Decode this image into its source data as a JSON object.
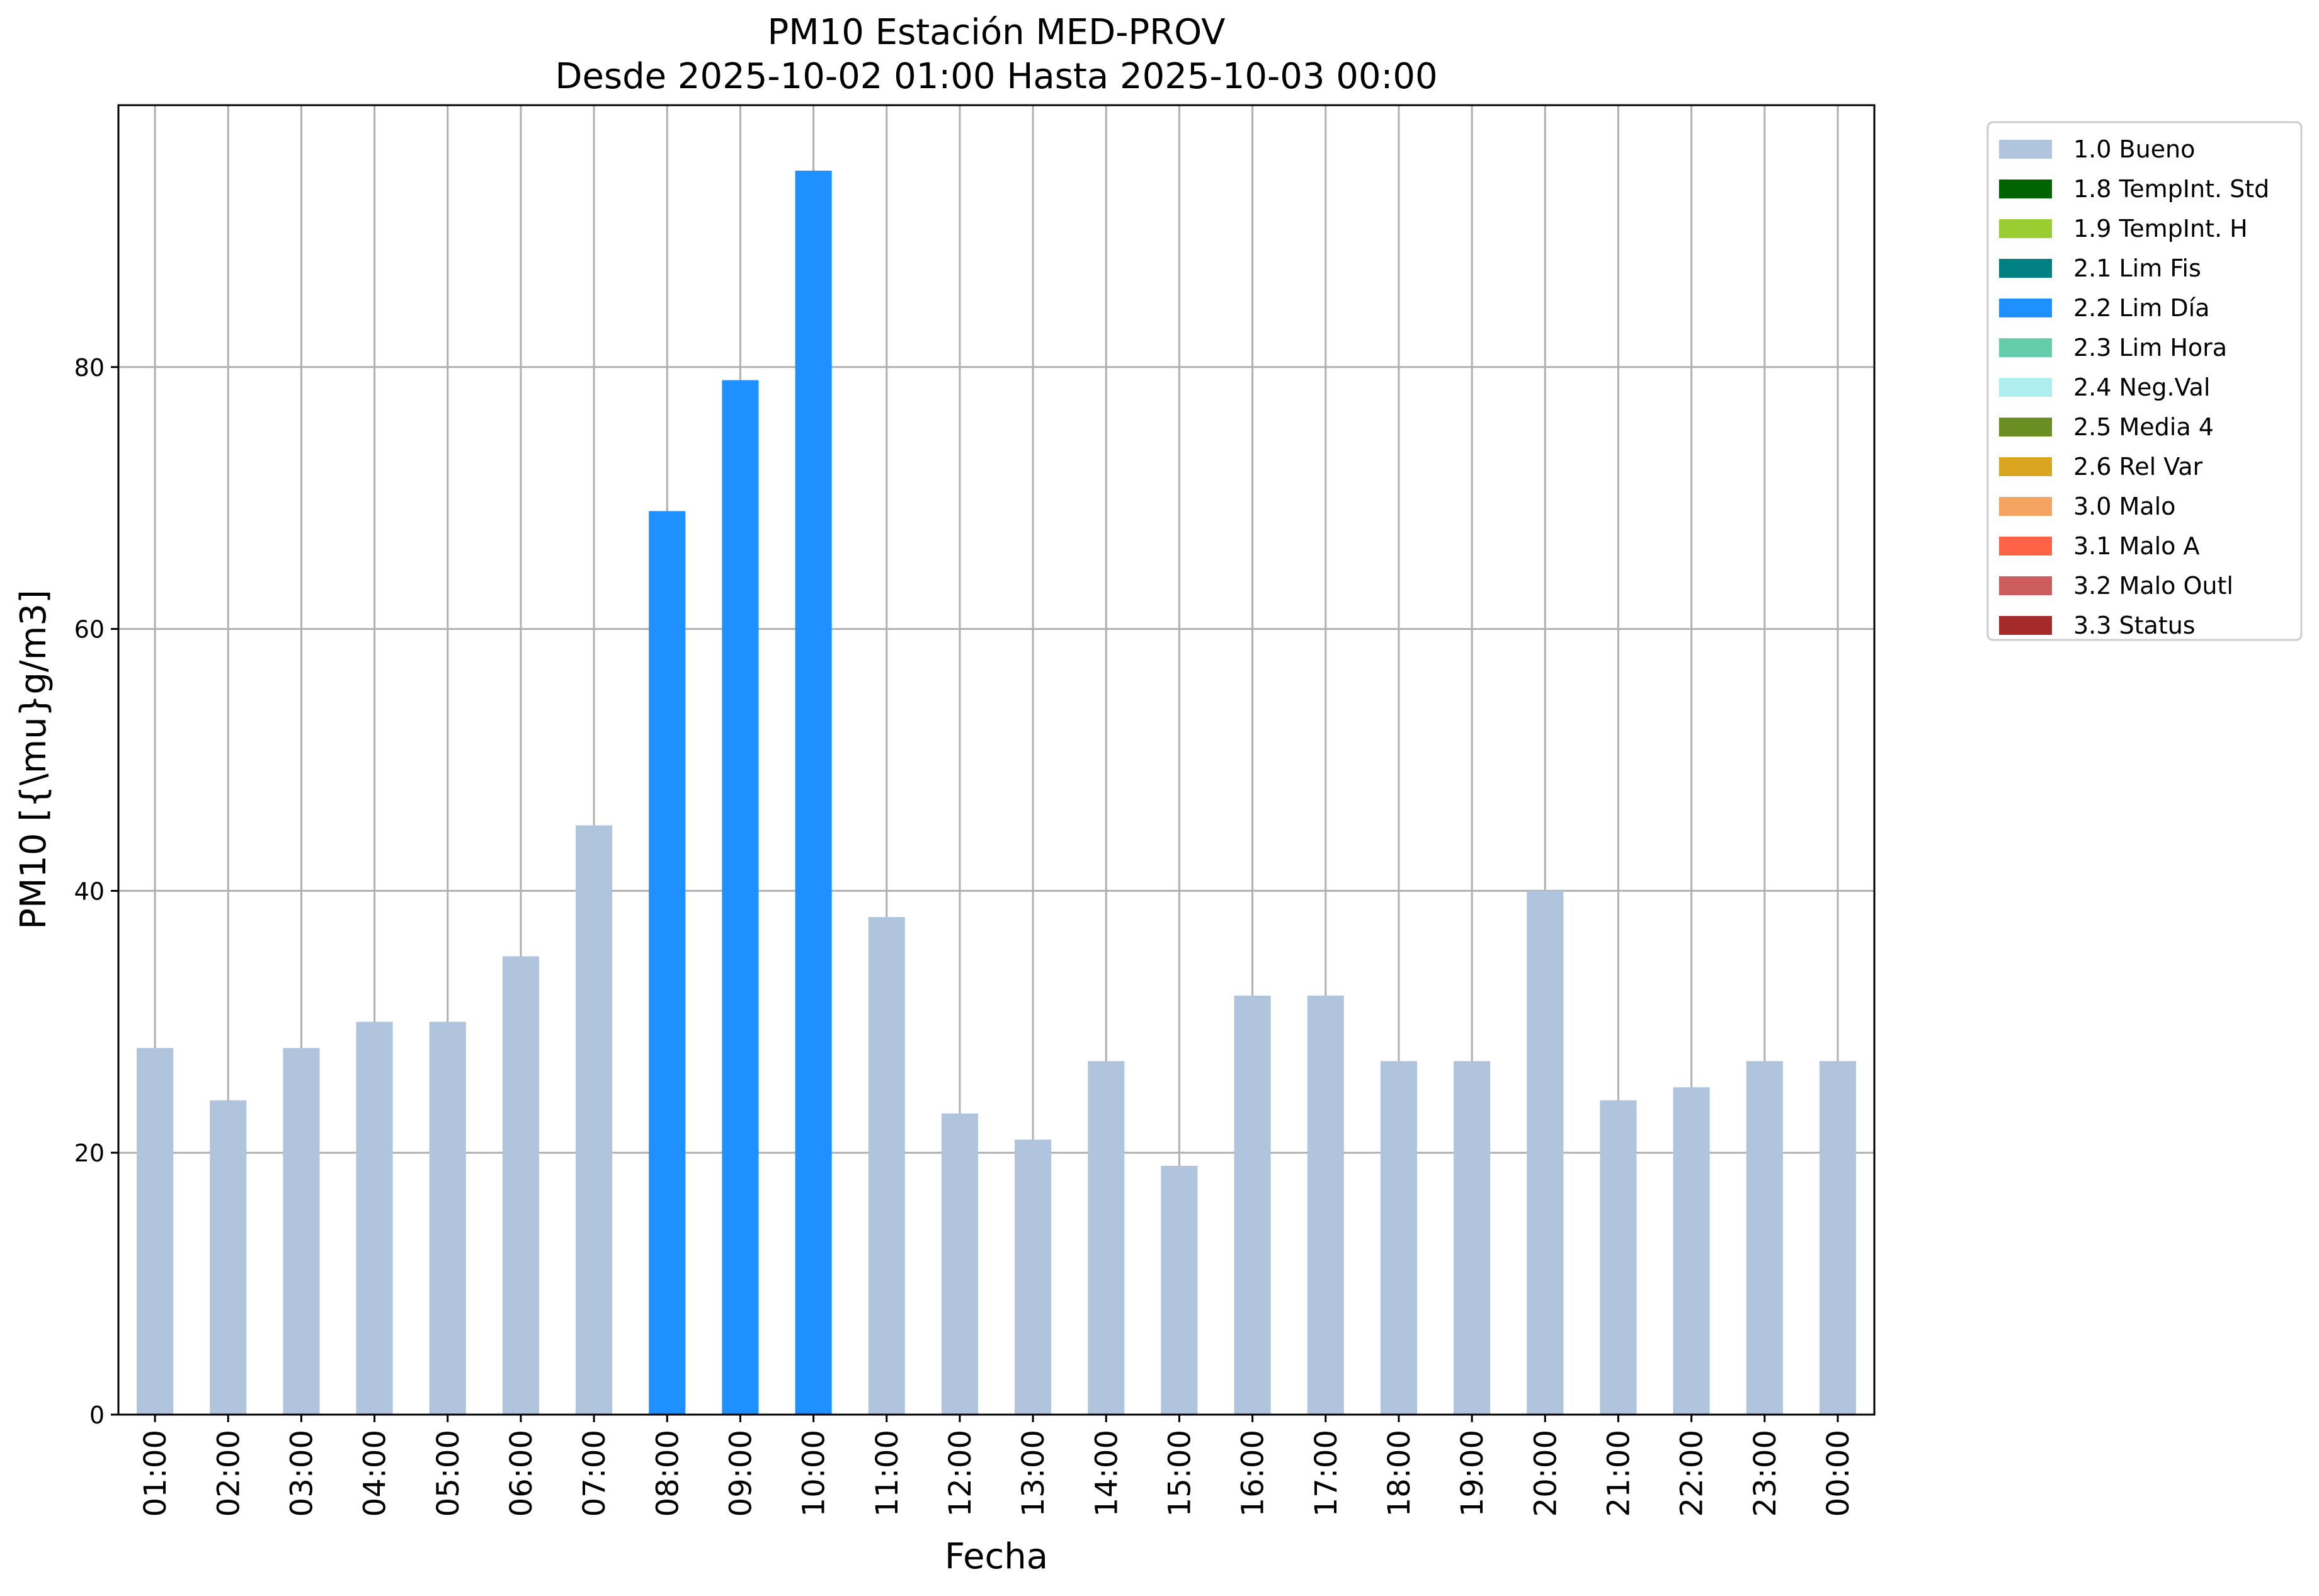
{
  "chart_data": {
    "type": "bar",
    "title": "PM10 Estación MED-PROV",
    "subtitle": "Desde 2025-10-02 01:00 Hasta 2025-10-03 00:00",
    "xlabel": "Fecha",
    "ylabel": "PM10 [{\\mu}g/m3]",
    "ylim": [
      0,
      100
    ],
    "yticks": [
      0,
      20,
      40,
      60,
      80
    ],
    "grid": true,
    "legend_position": "outside-top-right",
    "categories": [
      "01:00",
      "02:00",
      "03:00",
      "04:00",
      "05:00",
      "06:00",
      "07:00",
      "08:00",
      "09:00",
      "10:00",
      "11:00",
      "12:00",
      "13:00",
      "14:00",
      "15:00",
      "16:00",
      "17:00",
      "18:00",
      "19:00",
      "20:00",
      "21:00",
      "22:00",
      "23:00",
      "00:00"
    ],
    "values": [
      28,
      24,
      28,
      30,
      30,
      35,
      45,
      69,
      79,
      95,
      38,
      23,
      21,
      27,
      19,
      32,
      32,
      27,
      27,
      40,
      24,
      25,
      27,
      27
    ],
    "flags": [
      "1.0 Bueno",
      "1.0 Bueno",
      "1.0 Bueno",
      "1.0 Bueno",
      "1.0 Bueno",
      "1.0 Bueno",
      "1.0 Bueno",
      "2.2 Lim Día",
      "2.2 Lim Día",
      "2.2 Lim Día",
      "1.0 Bueno",
      "1.0 Bueno",
      "1.0 Bueno",
      "1.0 Bueno",
      "1.0 Bueno",
      "1.0 Bueno",
      "1.0 Bueno",
      "1.0 Bueno",
      "1.0 Bueno",
      "1.0 Bueno",
      "1.0 Bueno",
      "1.0 Bueno",
      "1.0 Bueno",
      "1.0 Bueno"
    ],
    "legend": [
      {
        "label": "1.0 Bueno",
        "color": "#b0c4de"
      },
      {
        "label": "1.8 TempInt. Std",
        "color": "#006400"
      },
      {
        "label": "1.9 TempInt. H",
        "color": "#9acd32"
      },
      {
        "label": "2.1 Lim Fis",
        "color": "#008080"
      },
      {
        "label": "2.2 Lim Día",
        "color": "#1e90ff"
      },
      {
        "label": "2.3 Lim Hora",
        "color": "#66cdaa"
      },
      {
        "label": "2.4 Neg.Val",
        "color": "#afeeee"
      },
      {
        "label": "2.5 Media 4",
        "color": "#6b8e23"
      },
      {
        "label": "2.6 Rel Var",
        "color": "#daa520"
      },
      {
        "label": "3.0 Malo",
        "color": "#f4a460"
      },
      {
        "label": "3.1 Malo A",
        "color": "#ff6347"
      },
      {
        "label": "3.2 Malo Outl",
        "color": "#cd5c5c"
      },
      {
        "label": "3.3 Status",
        "color": "#a52a2a"
      }
    ]
  }
}
